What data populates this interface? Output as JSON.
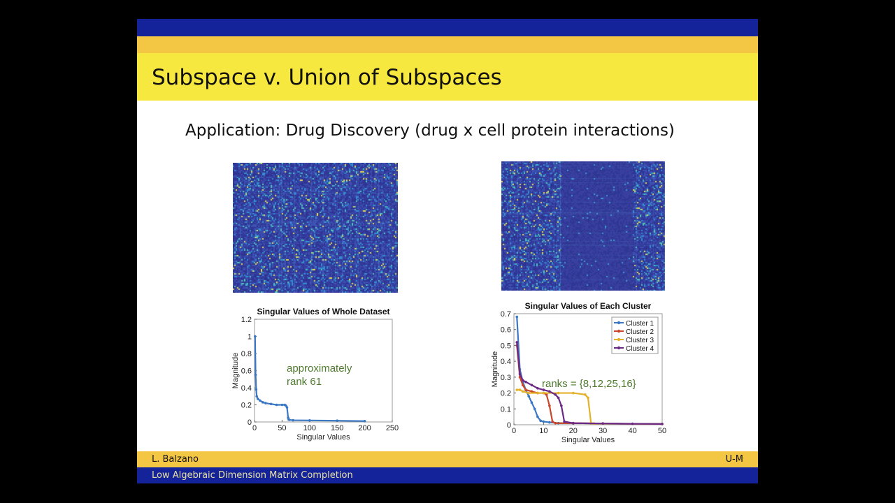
{
  "slide": {
    "title": "Subspace v. Union of Subspaces",
    "subtitle": "Application: Drug Discovery (drug x cell protein interactions)"
  },
  "footer": {
    "author": "L. Balzano",
    "institution": "U-M",
    "talk_title": "Low Algebraic Dimension Matrix Completion"
  },
  "colors": {
    "band_blue": "#15239b",
    "band_yellow": "#f3c743",
    "title_yellow": "#f7e83f",
    "heatmap_base": "#33389a"
  },
  "chart_data": [
    {
      "type": "line",
      "title": "Singular Values of Whole Dataset",
      "xlabel": "Singular Values",
      "ylabel": "Magnitude",
      "xlim": [
        0,
        250
      ],
      "ylim": [
        0,
        1.2
      ],
      "xticks": [
        0,
        50,
        100,
        150,
        200,
        250
      ],
      "yticks": [
        0,
        0.2,
        0.4,
        0.6,
        0.8,
        1,
        1.2
      ],
      "annotation": "approximately rank 61",
      "grid": false,
      "series": [
        {
          "color": "#3b78c4",
          "x": [
            1,
            2,
            3,
            4,
            6,
            10,
            15,
            20,
            30,
            40,
            50,
            55,
            57,
            59,
            61,
            62,
            63,
            70,
            100,
            150,
            200
          ],
          "y": [
            1.0,
            0.55,
            0.38,
            0.3,
            0.27,
            0.25,
            0.23,
            0.22,
            0.21,
            0.2,
            0.2,
            0.2,
            0.19,
            0.17,
            0.05,
            0.03,
            0.025,
            0.02,
            0.018,
            0.015,
            0.01
          ]
        }
      ]
    },
    {
      "type": "line",
      "title": "Singular Values of Each Cluster",
      "xlabel": "Singular Values",
      "ylabel": "Magnitude",
      "xlim": [
        0,
        50
      ],
      "ylim": [
        0,
        0.7
      ],
      "xticks": [
        0,
        10,
        20,
        30,
        40,
        50
      ],
      "yticks": [
        0,
        0.1,
        0.2,
        0.3,
        0.4,
        0.5,
        0.6,
        0.7
      ],
      "annotation": "ranks = {8,12,25,16}",
      "legend": "top-right",
      "grid": false,
      "series": [
        {
          "name": "Cluster 1",
          "color": "#3b78c4",
          "x": [
            1,
            2,
            3,
            4,
            5,
            6,
            7,
            8,
            9,
            10,
            12,
            15,
            20,
            30,
            40,
            50
          ],
          "y": [
            0.68,
            0.35,
            0.27,
            0.22,
            0.18,
            0.14,
            0.1,
            0.05,
            0.025,
            0.02,
            0.015,
            0.01,
            0.01,
            0.008,
            0.006,
            0.005
          ]
        },
        {
          "name": "Cluster 2",
          "color": "#c8472a",
          "x": [
            1,
            2,
            3,
            4,
            6,
            8,
            10,
            11,
            12,
            13,
            14,
            20,
            30,
            40,
            50
          ],
          "y": [
            0.5,
            0.3,
            0.25,
            0.22,
            0.21,
            0.2,
            0.2,
            0.19,
            0.12,
            0.02,
            0.01,
            0.01,
            0.008,
            0.006,
            0.005
          ]
        },
        {
          "name": "Cluster 3",
          "color": "#e4b12a",
          "x": [
            1,
            2,
            3,
            5,
            8,
            10,
            15,
            20,
            24,
            25,
            26,
            27,
            30,
            40,
            50
          ],
          "y": [
            0.22,
            0.22,
            0.21,
            0.2,
            0.2,
            0.2,
            0.2,
            0.2,
            0.19,
            0.17,
            0.01,
            0.008,
            0.007,
            0.006,
            0.005
          ]
        },
        {
          "name": "Cluster 4",
          "color": "#6c2a86",
          "x": [
            1,
            2,
            3,
            4,
            6,
            8,
            10,
            12,
            14,
            15,
            16,
            17,
            20,
            30,
            40,
            50
          ],
          "y": [
            0.52,
            0.32,
            0.28,
            0.27,
            0.25,
            0.23,
            0.22,
            0.21,
            0.19,
            0.17,
            0.12,
            0.02,
            0.01,
            0.008,
            0.006,
            0.005
          ]
        }
      ]
    }
  ]
}
